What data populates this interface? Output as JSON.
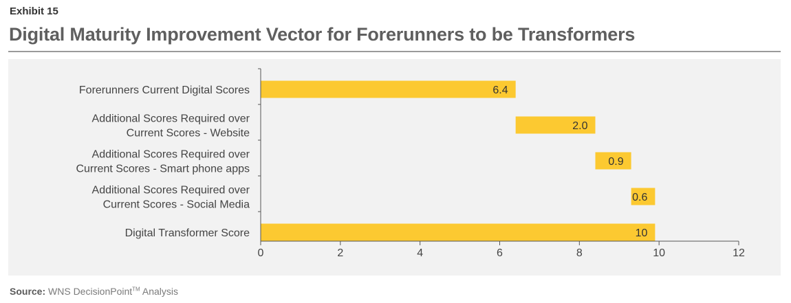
{
  "header": {
    "exhibit": "Exhibit 15",
    "title": "Digital Maturity Improvement Vector for Forerunners to be Transformers"
  },
  "chart_data": {
    "type": "bar",
    "orientation": "horizontal",
    "style": "waterfall",
    "categories": [
      [
        "Forerunners Current Digital Scores"
      ],
      [
        "Additional Scores Required over",
        "Current Scores - Website"
      ],
      [
        "Additional Scores Required over",
        "Current Scores - Smart phone apps"
      ],
      [
        "Additional Scores Required over",
        "Current Scores - Social Media"
      ],
      [
        "Digital Transformer Score"
      ]
    ],
    "bars": [
      {
        "start": 0,
        "end": 6.4,
        "label": "6.4"
      },
      {
        "start": 6.4,
        "end": 8.4,
        "label": "2.0"
      },
      {
        "start": 8.4,
        "end": 9.3,
        "label": "0.9"
      },
      {
        "start": 9.3,
        "end": 9.9,
        "label": "0.6"
      },
      {
        "start": 0,
        "end": 9.9,
        "label": "10"
      }
    ],
    "xlim": [
      0,
      12
    ],
    "xticks": [
      0,
      2,
      4,
      6,
      8,
      10,
      12
    ],
    "xtick_labels": [
      "0",
      "2",
      "4",
      "6",
      "8",
      "10",
      "12"
    ],
    "grid": false,
    "legend": "none",
    "colors": {
      "bar": "#fcc931",
      "axis": "#555555",
      "panel": "#f2f2f2"
    }
  },
  "footer": {
    "source_label": "Source:",
    "source_text": "WNS DecisionPoint",
    "source_mark": "TM",
    "source_suffix": "Analysis"
  }
}
